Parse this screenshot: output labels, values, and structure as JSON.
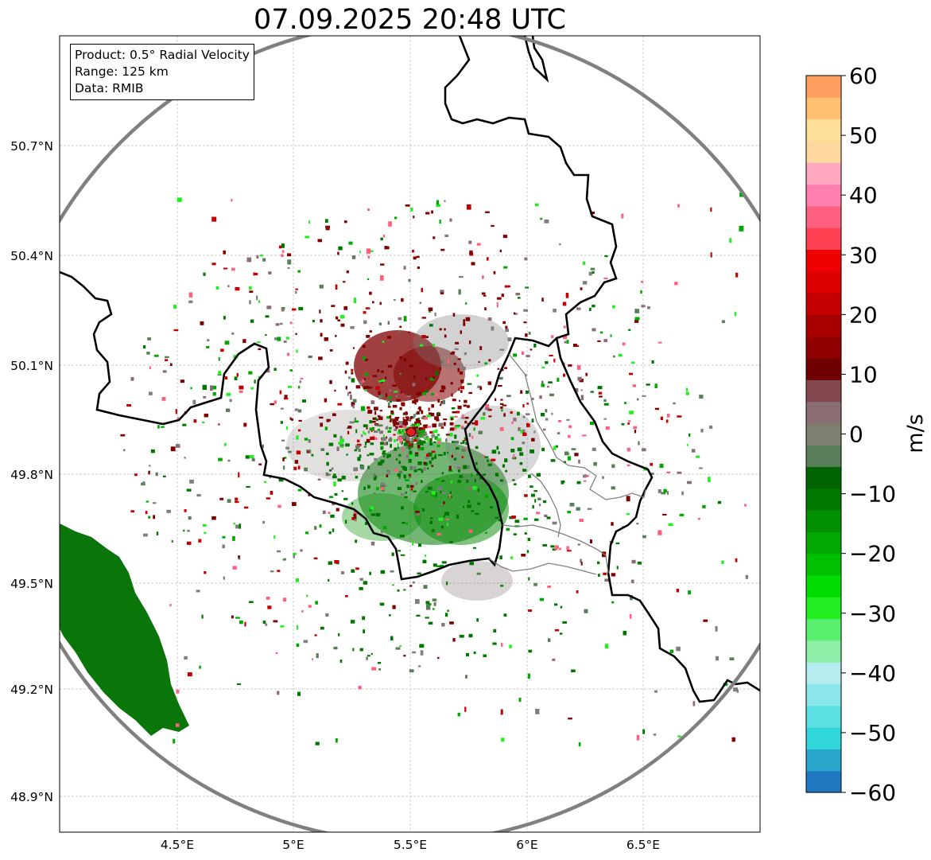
{
  "title": "07.09.2025 20:48 UTC",
  "info": {
    "product": "Product: 0.5° Radial Velocity",
    "range": "Range: 125 km",
    "data": "Data: RMIB"
  },
  "axes": {
    "lat_ticks": [
      "50.7°N",
      "50.4°N",
      "50.1°N",
      "49.8°N",
      "49.5°N",
      "49.2°N",
      "48.9°N"
    ],
    "lon_ticks": [
      "4.5°E",
      "5°E",
      "5.5°E",
      "6°E",
      "6.5°E"
    ]
  },
  "colorbar": {
    "label": "m/s",
    "ticks": [
      "60",
      "50",
      "40",
      "30",
      "20",
      "10",
      "0",
      "−10",
      "−20",
      "−30",
      "−40",
      "−50",
      "−60"
    ],
    "range": [
      -60,
      60
    ],
    "colors": [
      "#1f78c0",
      "#2aa6cc",
      "#30d8dc",
      "#5ae0e0",
      "#8ae6e8",
      "#b4ecf0",
      "#8ef0a8",
      "#5af070",
      "#22ee22",
      "#00dd00",
      "#00c000",
      "#00a800",
      "#009000",
      "#007800",
      "#006400",
      "#5a7e5a",
      "#7f7f6f",
      "#8a6e74",
      "#82484e",
      "#700000",
      "#900000",
      "#a80000",
      "#c40000",
      "#dc0000",
      "#f00000",
      "#ff4050",
      "#ff6080",
      "#ff80b0",
      "#ffa8c0",
      "#ffd8a0",
      "#ffe098",
      "#ffc070",
      "#ffa060"
    ]
  },
  "radar": {
    "lat": 49.91,
    "lon": 5.51
  },
  "colors": {
    "frame": "#000000",
    "range_ring": "#808080",
    "grid": "#bbbbbb",
    "radar_site": "#e02020"
  }
}
